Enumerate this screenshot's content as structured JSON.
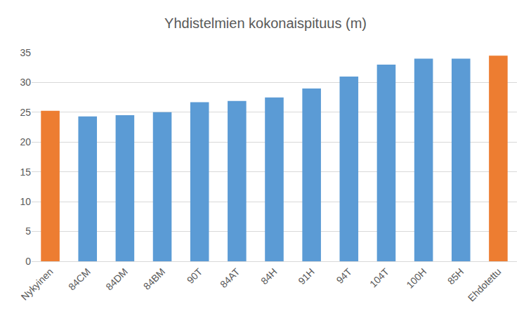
{
  "chart_data": {
    "type": "bar",
    "title": "Yhdistelmien kokonaispituus (m)",
    "categories": [
      "Nykyinen",
      "84CM",
      "84DM",
      "84BM",
      "90T",
      "84AT",
      "84H",
      "91H",
      "94T",
      "104T",
      "100H",
      "85H",
      "Ehdotettu"
    ],
    "values": [
      25.25,
      24.3,
      24.5,
      25,
      26.7,
      26.9,
      27.5,
      29,
      31,
      33,
      34,
      34,
      34.5
    ],
    "colors": [
      "#ED7D31",
      "#5B9BD5",
      "#5B9BD5",
      "#5B9BD5",
      "#5B9BD5",
      "#5B9BD5",
      "#5B9BD5",
      "#5B9BD5",
      "#5B9BD5",
      "#5B9BD5",
      "#5B9BD5",
      "#5B9BD5",
      "#ED7D31"
    ],
    "ylim": [
      0,
      35
    ],
    "yticks": [
      0,
      5,
      10,
      15,
      20,
      25,
      30,
      35
    ],
    "grid": true
  }
}
